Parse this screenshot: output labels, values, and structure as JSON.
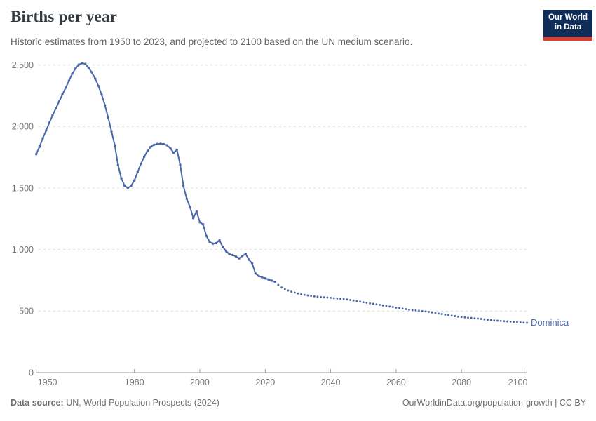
{
  "header": {
    "title": "Births per year",
    "subtitle": "Historic estimates from 1950 to 2023, and projected to 2100 based on the UN medium scenario.",
    "logo": {
      "line1": "Our World",
      "line2": "in Data"
    }
  },
  "footer": {
    "source_label": "Data source:",
    "source_text": " UN, World Population Prospects (2024)",
    "credit": "OurWorldinData.org/population-growth | CC BY"
  },
  "colors": {
    "line": "#4a68a9",
    "entity_label": "#4a68a9",
    "grid": "#dcdcdc",
    "axis": "#9b9b9b",
    "tick_label": "#757575",
    "logo_bg": "#102d59",
    "logo_accent": "#dc3e2b"
  },
  "chart_data": {
    "type": "line",
    "title": "Births per year",
    "subtitle": "Historic estimates from 1950 to 2023, and projected to 2100 based on the UN medium scenario.",
    "entity": "Dominica",
    "xlabel": "",
    "ylabel": "",
    "xlim": [
      1950,
      2100
    ],
    "ylim": [
      0,
      2500
    ],
    "grid": "horizontal-dashed",
    "legend_position": "end-of-line-label",
    "xticks": [
      {
        "value": 1950,
        "label": "1950"
      },
      {
        "value": 1980,
        "label": "1980"
      },
      {
        "value": 2000,
        "label": "2000"
      },
      {
        "value": 2020,
        "label": "2020"
      },
      {
        "value": 2040,
        "label": "2040"
      },
      {
        "value": 2060,
        "label": "2060"
      },
      {
        "value": 2080,
        "label": "2080"
      },
      {
        "value": 2100,
        "label": "2100"
      }
    ],
    "yticks": [
      {
        "value": 0,
        "label": "0"
      },
      {
        "value": 500,
        "label": "500"
      },
      {
        "value": 1000,
        "label": "1,000"
      },
      {
        "value": 1500,
        "label": "1,500"
      },
      {
        "value": 2000,
        "label": "2,000"
      },
      {
        "value": 2500,
        "label": "2,500"
      }
    ],
    "series": [
      {
        "name": "Dominica — historic estimates",
        "style": "solid",
        "markers": true,
        "start_year": 1950,
        "values": [
          1775,
          1836,
          1904,
          1967,
          2030,
          2091,
          2148,
          2203,
          2260,
          2315,
          2372,
          2429,
          2471,
          2502,
          2515,
          2508,
          2478,
          2440,
          2390,
          2330,
          2258,
          2172,
          2071,
          1961,
          1847,
          1688,
          1579,
          1519,
          1500,
          1518,
          1562,
          1630,
          1697,
          1754,
          1801,
          1834,
          1851,
          1858,
          1860,
          1857,
          1847,
          1823,
          1786,
          1811,
          1688,
          1517,
          1412,
          1346,
          1255,
          1310,
          1222,
          1205,
          1110,
          1062,
          1048,
          1052,
          1075,
          1022,
          988,
          963,
          956,
          945,
          928,
          948,
          965,
          918,
          888,
          806,
          785,
          775,
          766,
          757,
          747,
          738
        ]
      },
      {
        "name": "Dominica — UN medium scenario projection",
        "style": "dotted",
        "markers": true,
        "start_year": 2023,
        "values": [
          738,
          712,
          692,
          678,
          667,
          658,
          650,
          643,
          637,
          632,
          627,
          623,
          620,
          617,
          614,
          612,
          610,
          608,
          605,
          603,
          600,
          598,
          595,
          590,
          586,
          581,
          577,
          572,
          568,
          563,
          559,
          555,
          551,
          546,
          542,
          537,
          533,
          528,
          524,
          520,
          516,
          512,
          509,
          506,
          503,
          500,
          497,
          494,
          489,
          485,
          480,
          476,
          471,
          467,
          463,
          459,
          455,
          452,
          449,
          446,
          444,
          441,
          439,
          436,
          433,
          430,
          427,
          424,
          422,
          420,
          418,
          416,
          414,
          412,
          410,
          408,
          406,
          405
        ]
      }
    ]
  }
}
